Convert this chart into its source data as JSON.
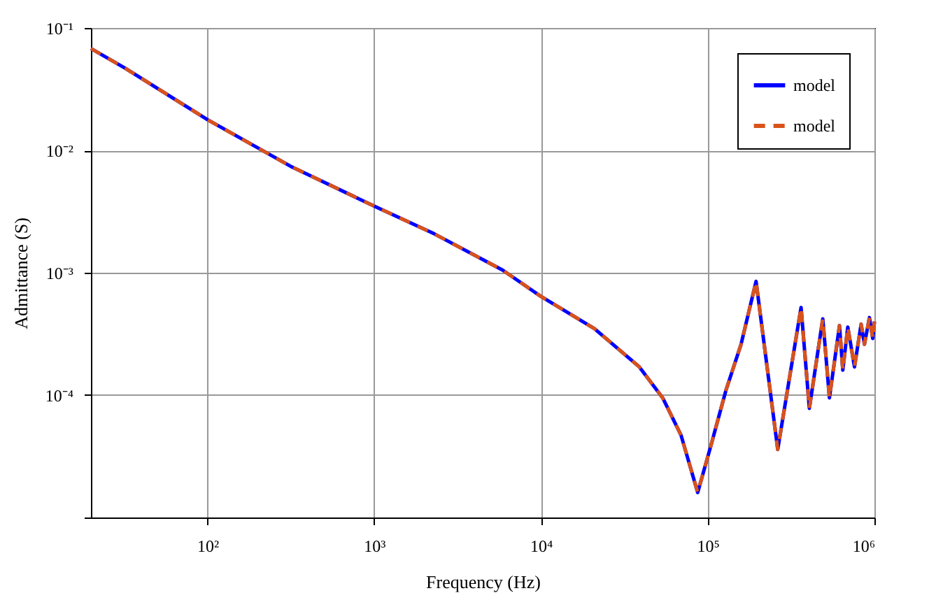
{
  "chart_data": {
    "type": "line",
    "xlabel": "Frequency (Hz)",
    "ylabel": "Admittance (S)",
    "log": "xy",
    "grid": true,
    "legend": "top right",
    "marker": "none",
    "x": [
      20,
      32,
      100,
      316,
      1000,
      2290,
      5890,
      10000,
      20900,
      38900,
      53700,
      69200,
      87100,
      104700,
      128800,
      158500,
      195000,
      263000,
      363000,
      407000,
      490000,
      537000,
      617000,
      646000,
      692000,
      759000,
      832000,
      871000,
      933000,
      977000,
      1000000
    ],
    "xlim": [
      20,
      1000000
    ],
    "ylim": [
      1e-05,
      0.1
    ],
    "xticks": [
      {
        "value": 100,
        "label": "10²"
      },
      {
        "value": 1000,
        "label": "10³"
      },
      {
        "value": 10000,
        "label": "10⁴"
      },
      {
        "value": 100000,
        "label": "10⁵"
      },
      {
        "value": 1000000,
        "label": "10⁶"
      }
    ],
    "yticks": [
      {
        "value": 1e-05,
        "label": null
      },
      {
        "value": 0.0001,
        "label": "10⁻⁴"
      },
      {
        "value": 0.001,
        "label": "10⁻³"
      },
      {
        "value": 0.01,
        "label": "10⁻²"
      },
      {
        "value": 0.1,
        "label": "10⁻¹"
      }
    ],
    "series": [
      {
        "name": "model",
        "color": "#0000ff",
        "line_style": "solid",
        "values": [
          0.068,
          0.047,
          0.0178,
          0.0074,
          0.0035,
          0.00208,
          0.00105,
          0.00064,
          0.00035,
          0.00017,
          9.5e-05,
          4.7e-05,
          1.6e-05,
          3.9e-05,
          0.00011,
          0.00026,
          0.00085,
          3.6e-05,
          0.00052,
          7.8e-05,
          0.00042,
          9.5e-05,
          0.00037,
          0.00016,
          0.00036,
          0.00017,
          0.00038,
          0.00026,
          0.00043,
          0.00029,
          0.0004
        ]
      },
      {
        "name": "model",
        "color": "#d95319",
        "line_style": "dashed",
        "values": [
          0.068,
          0.047,
          0.0178,
          0.0074,
          0.0035,
          0.00208,
          0.00105,
          0.00064,
          0.00035,
          0.00017,
          9.5e-05,
          4.7e-05,
          1.6e-05,
          3.9e-05,
          0.00011,
          0.00026,
          0.00085,
          3.6e-05,
          0.00052,
          7.8e-05,
          0.00042,
          9.5e-05,
          0.00037,
          0.00016,
          0.00036,
          0.00017,
          0.00038,
          0.00026,
          0.00043,
          0.00029,
          0.0004
        ]
      }
    ]
  }
}
